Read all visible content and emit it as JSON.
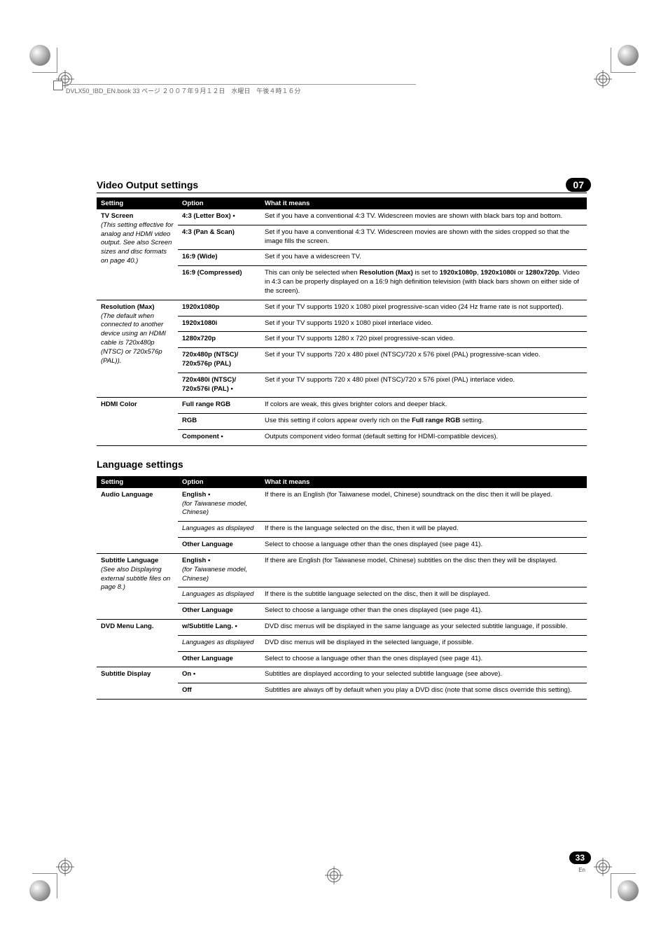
{
  "header_line": "DVLX50_IBD_EN.book  33 ページ  ２００７年９月１２日　水曜日　午後４時１６分",
  "chapter_badge": "07",
  "page_number": "33",
  "page_lang": "En",
  "video": {
    "title": "Video Output settings",
    "cols": {
      "setting": "Setting",
      "option": "Option",
      "desc": "What it means"
    },
    "rows": [
      {
        "setting": "TV Screen",
        "setting_note": "(This setting effective for analog and HDMI video output. See also Screen sizes and disc formats on page 40.)",
        "span": 4,
        "opts": [
          {
            "option": "4:3 (Letter Box) •",
            "desc": "Set if you have a conventional 4:3 TV. Widescreen movies are shown with black bars top and bottom."
          },
          {
            "option": "4:3 (Pan & Scan)",
            "desc": "Set if you have a conventional 4:3 TV. Widescreen movies are shown with the sides cropped so that the image fills the screen."
          },
          {
            "option": "16:9 (Wide)",
            "desc": "Set if you have a widescreen TV."
          },
          {
            "option": "16:9 (Compressed)",
            "desc_html": "This can only be selected when <b>Resolution (Max)</b> is set to <b>1920x1080p</b>, <b>1920x1080i</b> or <b>1280x720p</b>. Video in 4:3 can be properly displayed on a 16:9 high definition television (with black bars shown on either side of the screen)."
          }
        ]
      },
      {
        "setting": "Resolution (Max)",
        "setting_note": "(The default when connected to another device using an HDMI cable is 720x480p (NTSC) or 720x576p (PAL)).",
        "span": 5,
        "opts": [
          {
            "option": "1920x1080p",
            "desc": "Set if your TV supports 1920 x 1080 pixel progressive-scan video (24 Hz frame rate is not supported)."
          },
          {
            "option": "1920x1080i",
            "desc": "Set if your TV supports 1920 x 1080 pixel interlace video."
          },
          {
            "option": "1280x720p",
            "desc": "Set if your TV supports 1280 x 720 pixel progressive-scan video."
          },
          {
            "option": "720x480p (NTSC)/ 720x576p (PAL)",
            "desc": "Set if your TV supports 720 x 480 pixel (NTSC)/720 x 576 pixel (PAL) progressive-scan video."
          },
          {
            "option": "720x480i (NTSC)/ 720x576i (PAL) •",
            "desc": "Set if your TV supports 720 x 480 pixel (NTSC)/720 x 576 pixel (PAL) interlace video."
          }
        ]
      },
      {
        "setting": "HDMI Color",
        "span": 3,
        "opts": [
          {
            "option": "Full range RGB",
            "desc": "If colors are weak, this gives brighter colors and deeper black."
          },
          {
            "option": "RGB",
            "desc_html": "Use this setting if colors appear overly rich on the <b>Full range RGB</b> setting."
          },
          {
            "option": "Component •",
            "desc": "Outputs component video format (default setting for HDMI-compatible devices)."
          }
        ]
      }
    ]
  },
  "language": {
    "title": "Language settings",
    "cols": {
      "setting": "Setting",
      "option": "Option",
      "desc": "What it means"
    },
    "rows": [
      {
        "setting": "Audio Language",
        "span": 3,
        "opts": [
          {
            "option": "English •",
            "option_note": "(for Taiwanese model, Chinese)",
            "desc": "If there is an English (for Taiwanese model, Chinese) soundtrack on the disc then it will be played."
          },
          {
            "option_italic": "Languages as displayed",
            "desc": "If there is the language selected on the disc, then it will be played."
          },
          {
            "option": "Other Language",
            "desc": "Select to choose a language other than the ones displayed (see page 41)."
          }
        ]
      },
      {
        "setting": "Subtitle Language",
        "setting_note": "(See also Displaying external subtitle files on page 8.)",
        "span": 3,
        "opts": [
          {
            "option": "English •",
            "option_note": "(for Taiwanese model, Chinese)",
            "desc": "If there are English (for Taiwanese model, Chinese) subtitles on the disc then they will be displayed."
          },
          {
            "option_italic": "Languages as displayed",
            "desc": "If there is the subtitle language selected on the disc, then it will be displayed."
          },
          {
            "option": "Other Language",
            "desc": "Select to choose a language other than the ones displayed (see page 41)."
          }
        ]
      },
      {
        "setting": "DVD Menu Lang.",
        "span": 3,
        "opts": [
          {
            "option": "w/Subtitle Lang. •",
            "desc": "DVD disc menus will be displayed in the same language as your selected subtitle language, if possible."
          },
          {
            "option_italic": "Languages as displayed",
            "desc": "DVD disc menus will be displayed in the selected language, if possible."
          },
          {
            "option": "Other Language",
            "desc": "Select to choose a language other than the ones displayed (see page 41)."
          }
        ]
      },
      {
        "setting": "Subtitle Display",
        "span": 2,
        "opts": [
          {
            "option": "On •",
            "desc": "Subtitles are displayed according to your selected subtitle language (see above)."
          },
          {
            "option": "Off",
            "desc": "Subtitles are always off by default when you play a DVD disc (note that some discs override this setting)."
          }
        ]
      }
    ]
  }
}
